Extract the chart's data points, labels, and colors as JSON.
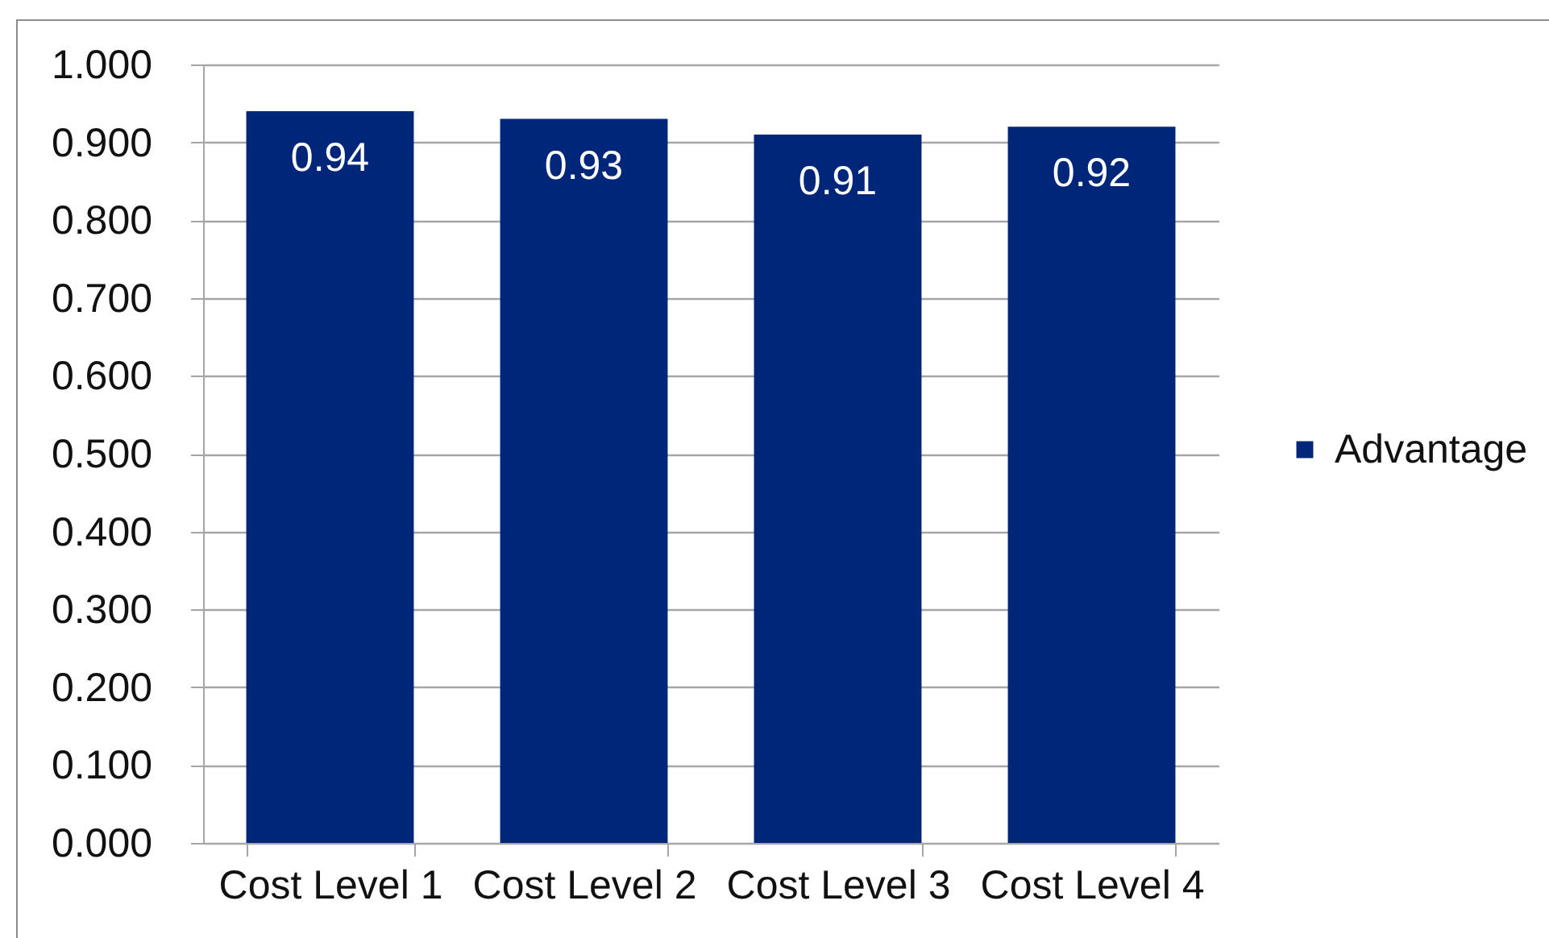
{
  "chart_data": {
    "type": "bar",
    "categories": [
      "Cost Level 1",
      "Cost Level 2",
      "Cost Level 3",
      "Cost Level 4"
    ],
    "series": [
      {
        "name": "Advantage",
        "color": "#00267a",
        "values": [
          0.94,
          0.93,
          0.91,
          0.92
        ]
      }
    ],
    "ylim": [
      0,
      1
    ],
    "yticks": [
      {
        "value": 0,
        "label": "0.000"
      },
      {
        "value": 0.1,
        "label": "0.100"
      },
      {
        "value": 0.2,
        "label": "0.200"
      },
      {
        "value": 0.3,
        "label": "0.300"
      },
      {
        "value": 0.4,
        "label": "0.400"
      },
      {
        "value": 0.5,
        "label": "0.500"
      },
      {
        "value": 0.6,
        "label": "0.600"
      },
      {
        "value": 0.7,
        "label": "0.700"
      },
      {
        "value": 0.8,
        "label": "0.800"
      },
      {
        "value": 0.9,
        "label": "0.900"
      },
      {
        "value": 1,
        "label": "1.000"
      }
    ],
    "grid": "y",
    "legend": "right",
    "data_labels": true
  }
}
